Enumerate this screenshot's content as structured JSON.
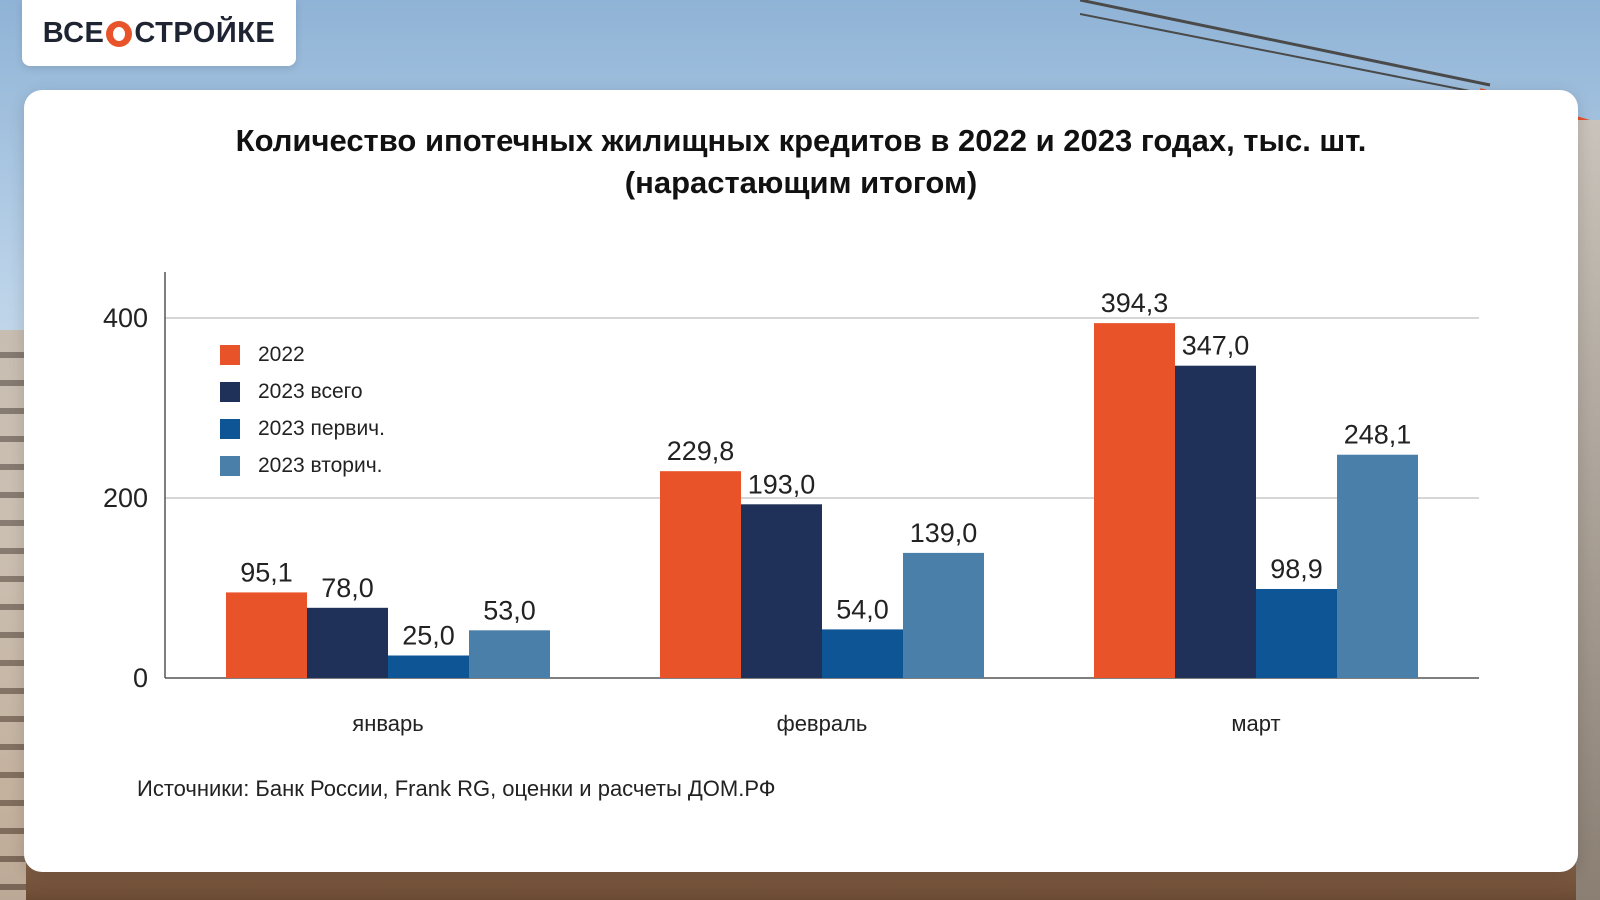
{
  "logo": {
    "left": "ВСЕ",
    "right": "СТРОЙКЕ"
  },
  "source": "Источники: Банк России, Frank RG, оценки и расчеты ДОМ.РФ",
  "chart_data": {
    "type": "bar",
    "title": "Количество ипотечных жилищных кредитов в 2022 и 2023 годах, тыс. шт.",
    "subtitle": "(нарастающим итогом)",
    "categories": [
      "январь",
      "февраль",
      "март"
    ],
    "series": [
      {
        "name": "2022",
        "color": "#e8532a",
        "values": [
          95.1,
          229.8,
          394.3
        ],
        "labels": [
          "95,1",
          "229,8",
          "394,3"
        ]
      },
      {
        "name": "2023 всего",
        "color": "#1f3158",
        "values": [
          78.0,
          193.0,
          347.0
        ],
        "labels": [
          "78,0",
          "193,0",
          "347,0"
        ]
      },
      {
        "name": "2023 первич.",
        "color": "#0e5596",
        "values": [
          25.0,
          54.0,
          98.9
        ],
        "labels": [
          "25,0",
          "54,0",
          "98,9"
        ]
      },
      {
        "name": "2023 вторич.",
        "color": "#4a7fa9",
        "values": [
          53.0,
          139.0,
          248.1
        ],
        "labels": [
          "53,0",
          "139,0",
          "248,1"
        ]
      }
    ],
    "yticks": [
      0,
      200,
      400
    ],
    "ylim": [
      0,
      450
    ],
    "grid": true,
    "legend": "top-left",
    "xlabel": "",
    "ylabel": ""
  }
}
